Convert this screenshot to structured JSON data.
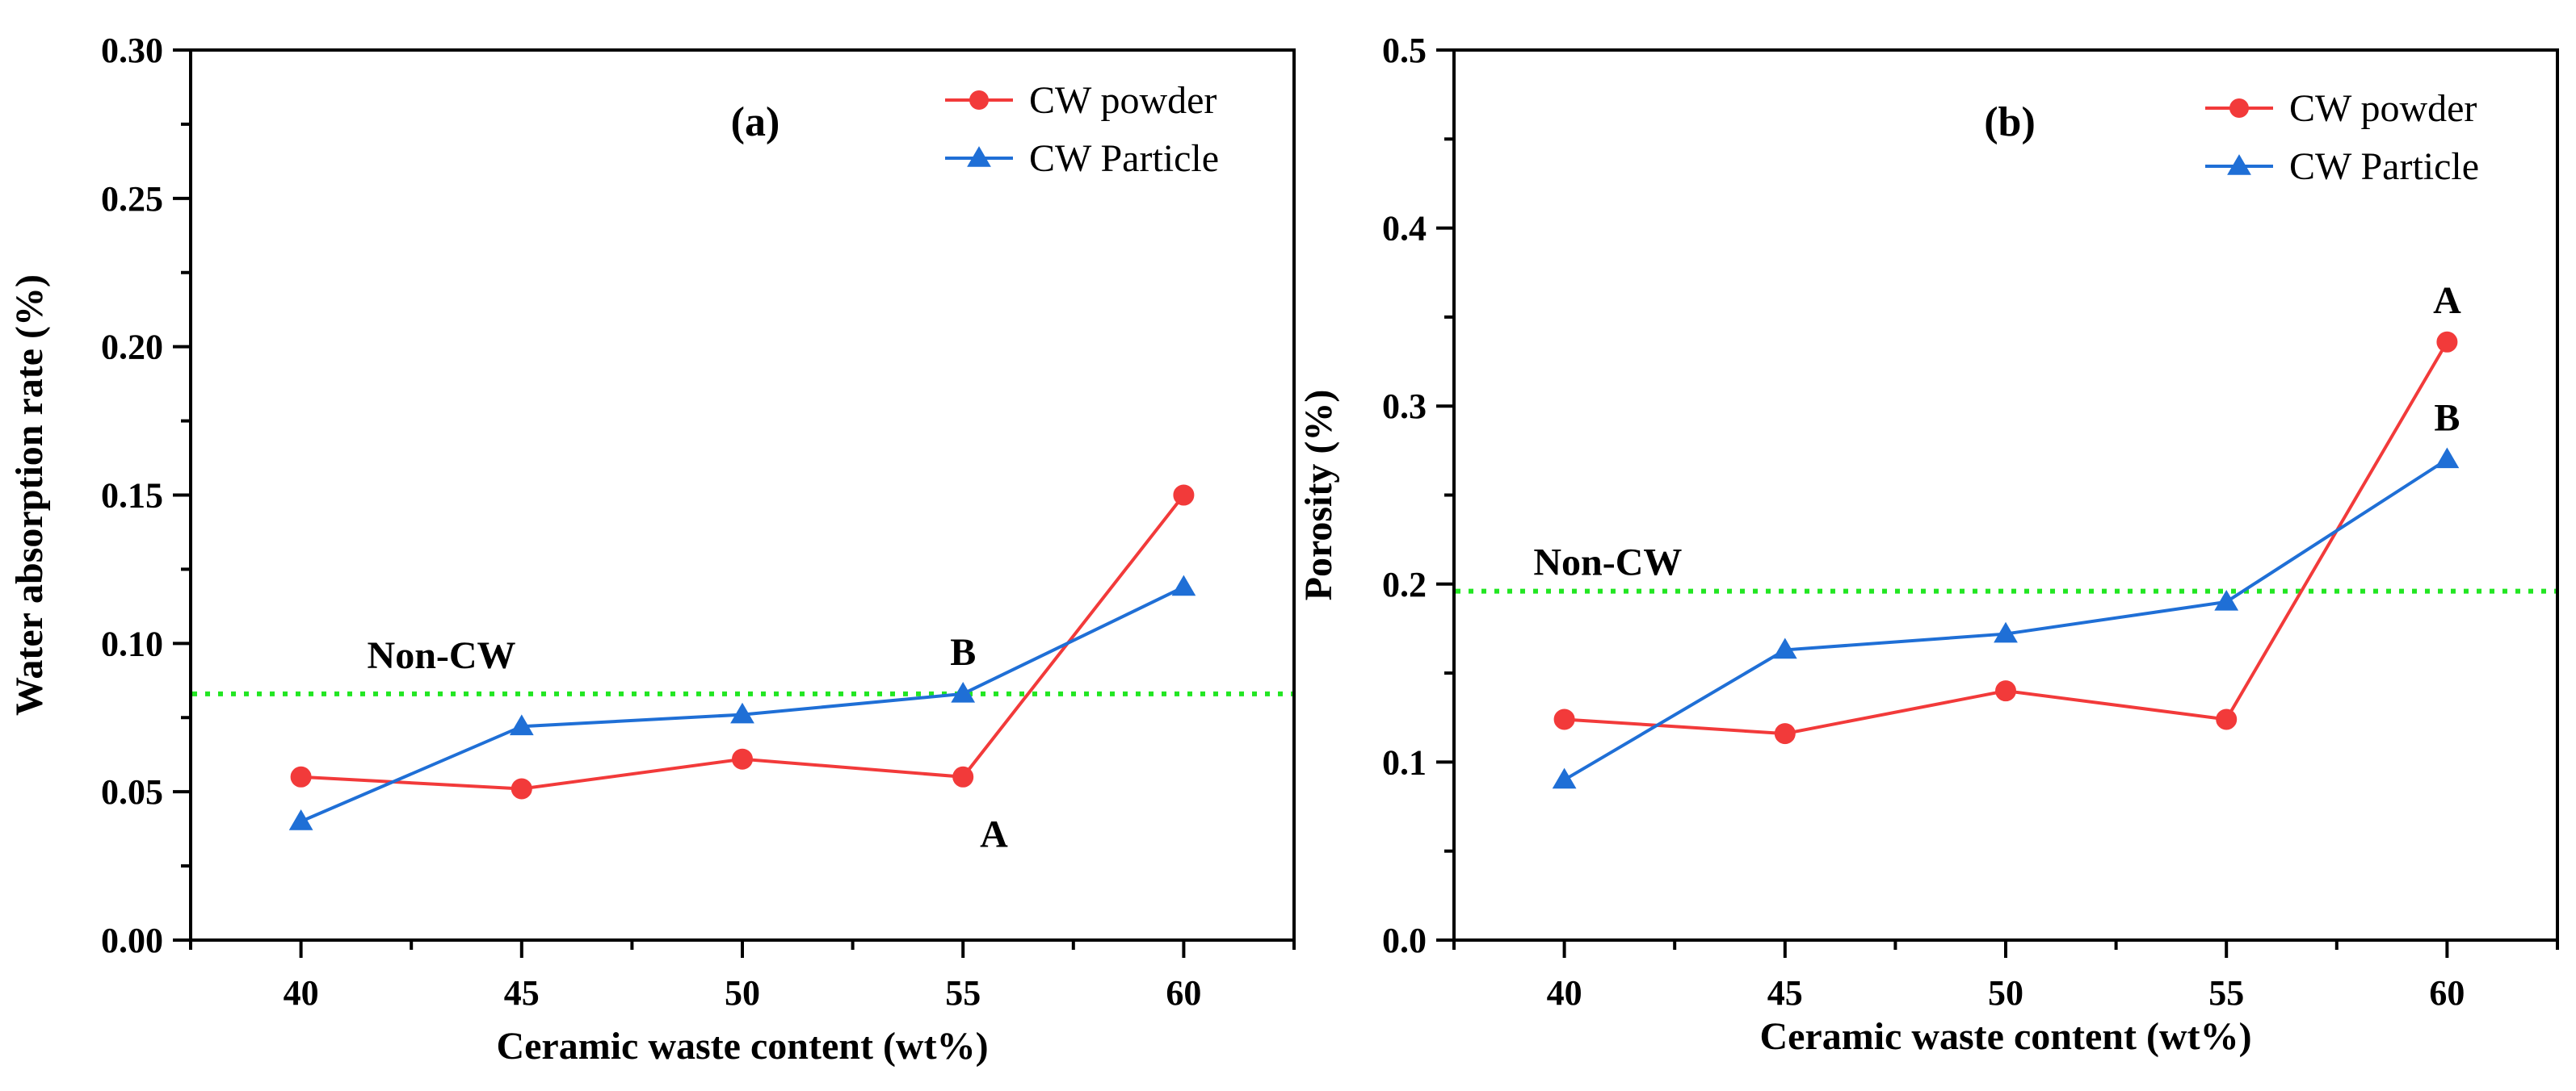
{
  "colors": {
    "powder": "#f23a3a",
    "particle": "#1f6fd6",
    "reference": "#22e622",
    "axis": "#000000"
  },
  "chart_data": [
    {
      "type": "line",
      "panel_label": "(a)",
      "xlabel": "Ceramic  waste content (wt%)",
      "ylabel": "Water absorption rate (%)",
      "x": [
        40,
        45,
        50,
        55,
        60
      ],
      "xlim": [
        37.5,
        62.5
      ],
      "ylim": [
        0,
        0.3
      ],
      "yticks": [
        0.0,
        0.05,
        0.1,
        0.15,
        0.2,
        0.25,
        0.3
      ],
      "ytick_labels": [
        "0.00",
        "0.05",
        "0.10",
        "0.15",
        "0.20",
        "0.25",
        "0.30"
      ],
      "xtick_labels": [
        "40",
        "45",
        "50",
        "55",
        "60"
      ],
      "legend_position": "top-right",
      "series": [
        {
          "name": "CW powder",
          "marker": "circle",
          "color": "#f23a3a",
          "values": [
            0.055,
            0.051,
            0.061,
            0.055,
            0.15
          ]
        },
        {
          "name": "CW Particle",
          "marker": "triangle",
          "color": "#1f6fd6",
          "values": [
            0.04,
            0.072,
            0.076,
            0.083,
            0.119
          ]
        }
      ],
      "reference_line": {
        "label": "Non-CW",
        "value": 0.083,
        "label_x": 41.5
      },
      "annotations": [
        {
          "text": "B",
          "x": 55,
          "y": 0.083,
          "placement": "above"
        },
        {
          "text": "A",
          "x": 55.7,
          "y": 0.045,
          "placement": "below"
        }
      ]
    },
    {
      "type": "line",
      "panel_label": "(b)",
      "xlabel": "Ceramic waste content  (wt%)",
      "ylabel": "Porosity (%)",
      "x": [
        40,
        45,
        50,
        55,
        60
      ],
      "xlim": [
        37.5,
        62.5
      ],
      "ylim": [
        0,
        0.5
      ],
      "yticks": [
        0.0,
        0.1,
        0.2,
        0.3,
        0.4,
        0.5
      ],
      "ytick_labels": [
        "0.0",
        "0.1",
        "0.2",
        "0.3",
        "0.4",
        "0.5"
      ],
      "xtick_labels": [
        "40",
        "45",
        "50",
        "55",
        "60"
      ],
      "legend_position": "top-right",
      "series": [
        {
          "name": "CW powder",
          "marker": "circle",
          "color": "#f23a3a",
          "values": [
            0.124,
            0.116,
            0.14,
            0.124,
            0.336
          ]
        },
        {
          "name": "CW Particle",
          "marker": "triangle",
          "color": "#1f6fd6",
          "values": [
            0.09,
            0.163,
            0.172,
            0.19,
            0.27
          ]
        }
      ],
      "reference_line": {
        "label": "Non-CW",
        "value": 0.196,
        "label_x": 39.3
      },
      "annotations": [
        {
          "text": "A",
          "x": 60,
          "y": 0.336,
          "placement": "above"
        },
        {
          "text": "B",
          "x": 60,
          "y": 0.27,
          "placement": "above"
        }
      ]
    }
  ]
}
